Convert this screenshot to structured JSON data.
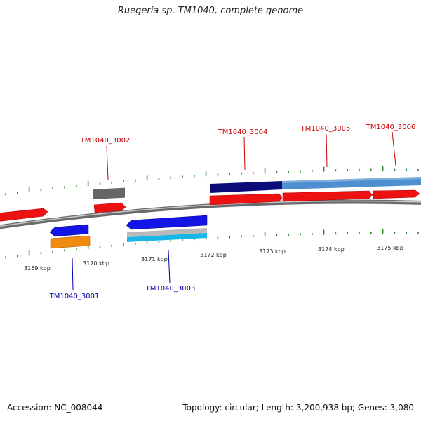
{
  "title": "Ruegeria sp. TM1040, complete genome",
  "footer": {
    "accession": "Accession: NC_008044",
    "summary": "Topology: circular; Length: 3,200,938 bp; Genes: 3,080"
  },
  "colors": {
    "backbone": "#8a8a8a",
    "tick": "#2a8a2a",
    "forward_label": "#cc0000",
    "reverse_label": "#0000aa",
    "red": "#ee1111",
    "navy": "#0b0b7a",
    "steelblue": "#4f8fcf",
    "darkgray": "#666666",
    "blue": "#1414e6",
    "orange": "#f08a10",
    "lightgray": "#b9b9b9",
    "cyan": "#19b6e8"
  },
  "kbp_labels": [
    "3169 kbp",
    "3170 kbp",
    "3171 kbp",
    "3172 kbp",
    "3173 kbp",
    "3174 kbp",
    "3175 kbp"
  ],
  "gene_labels": [
    {
      "text": "TM1040_3002",
      "strand": "forward"
    },
    {
      "text": "TM1040_3004",
      "strand": "forward"
    },
    {
      "text": "TM1040_3005",
      "strand": "forward"
    },
    {
      "text": "TM1040_3006",
      "strand": "forward"
    },
    {
      "text": "TM1040_3001",
      "strand": "reverse"
    },
    {
      "text": "TM1040_3003",
      "strand": "reverse"
    }
  ]
}
